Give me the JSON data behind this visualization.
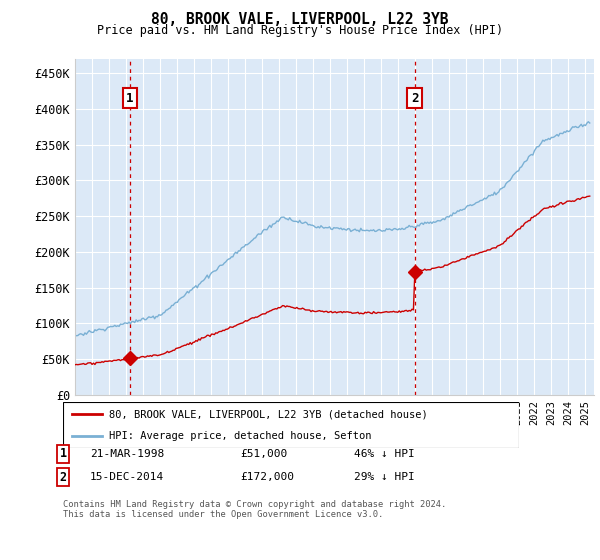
{
  "title": "80, BROOK VALE, LIVERPOOL, L22 3YB",
  "subtitle": "Price paid vs. HM Land Registry's House Price Index (HPI)",
  "ylim": [
    0,
    470000
  ],
  "yticks": [
    0,
    50000,
    100000,
    150000,
    200000,
    250000,
    300000,
    350000,
    400000,
    450000
  ],
  "xlim_start": 1995.0,
  "xlim_end": 2025.5,
  "plot_bg_color": "#dce9f7",
  "grid_color": "#ffffff",
  "sale1_x": 1998.22,
  "sale1_y": 51000,
  "sale2_x": 2014.96,
  "sale2_y": 172000,
  "legend_line1": "80, BROOK VALE, LIVERPOOL, L22 3YB (detached house)",
  "legend_line2": "HPI: Average price, detached house, Sefton",
  "note1_date": "21-MAR-1998",
  "note1_price": "£51,000",
  "note1_hpi": "46% ↓ HPI",
  "note2_date": "15-DEC-2014",
  "note2_price": "£172,000",
  "note2_hpi": "29% ↓ HPI",
  "footer": "Contains HM Land Registry data © Crown copyright and database right 2024.\nThis data is licensed under the Open Government Licence v3.0.",
  "sale_color": "#cc0000",
  "hpi_color": "#7ab0d4",
  "dashed_color": "#cc0000"
}
